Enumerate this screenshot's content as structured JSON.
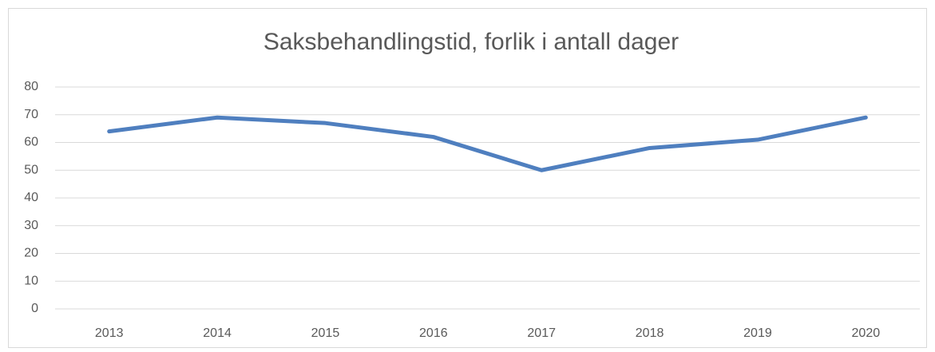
{
  "chart_data": {
    "type": "line",
    "title": "Saksbehandlingstid, forlik i antall dager",
    "categories": [
      "2013",
      "2014",
      "2015",
      "2016",
      "2017",
      "2018",
      "2019",
      "2020"
    ],
    "series": [
      {
        "name": null,
        "color": "#4f7fbf",
        "values": [
          64,
          69,
          67,
          62,
          50,
          58,
          61,
          69
        ]
      }
    ],
    "ylim": [
      0,
      80
    ],
    "yticks": [
      0,
      10,
      20,
      30,
      40,
      50,
      60,
      70,
      80
    ],
    "grid": true,
    "legend": false
  }
}
